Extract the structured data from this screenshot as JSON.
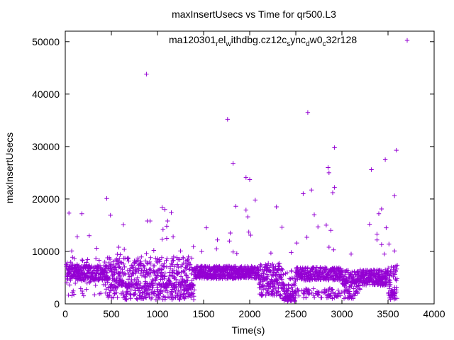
{
  "chart_data": {
    "type": "scatter",
    "title": "maxInsertUsecs vs Time for qr500.L3",
    "xlabel": "Time(s)",
    "ylabel": "maxInsertUsecs",
    "xlim": [
      0,
      4000
    ],
    "ylim": [
      0,
      52000
    ],
    "x_ticks": [
      0,
      500,
      1000,
      1500,
      2000,
      2500,
      3000,
      3500,
      4000
    ],
    "y_ticks": [
      0,
      10000,
      20000,
      30000,
      40000,
      50000
    ],
    "x_tick_labels": [
      "0",
      "500",
      "1000",
      "1500",
      "2000",
      "2500",
      "3000",
      "3500",
      "4000"
    ],
    "y_tick_labels": [
      "0",
      "10000",
      "20000",
      "30000",
      "40000",
      "50000"
    ],
    "legend_position": "top-right",
    "marker": "+",
    "series": [
      {
        "name": "ma120301relwithdbg.cz12csyncdw0c32r128",
        "name_parts": {
          "p1": "ma120301",
          "s1": "r",
          "p2": "el",
          "s2": "w",
          "p3": "ithdbg.cz12c",
          "s3": "s",
          "p4": "ync",
          "s4": "d",
          "p5": "w0",
          "s5": "c",
          "p6": "32r128"
        },
        "color": "#9400d3",
        "outliers": [
          [
            880,
            43800
          ],
          [
            2630,
            36500
          ],
          [
            1760,
            35200
          ],
          [
            2920,
            29800
          ],
          [
            3590,
            29300
          ],
          [
            3470,
            27500
          ],
          [
            1820,
            26800
          ],
          [
            2850,
            26000
          ],
          [
            3320,
            25600
          ],
          [
            2860,
            25000
          ],
          [
            1960,
            24100
          ],
          [
            2000,
            23700
          ],
          [
            2920,
            22200
          ],
          [
            2670,
            21700
          ],
          [
            2900,
            21200
          ],
          [
            2580,
            21000
          ],
          [
            3570,
            20600
          ],
          [
            450,
            20100
          ],
          [
            2060,
            19800
          ],
          [
            1850,
            18600
          ],
          [
            2290,
            18500
          ],
          [
            1050,
            18400
          ],
          [
            3430,
            18100
          ],
          [
            1080,
            18000
          ],
          [
            1960,
            17900
          ],
          [
            40,
            17300
          ],
          [
            180,
            17200
          ],
          [
            1150,
            17400
          ],
          [
            3400,
            17200
          ],
          [
            2700,
            17000
          ],
          [
            490,
            16900
          ],
          [
            1980,
            16600
          ],
          [
            890,
            15800
          ],
          [
            920,
            15800
          ],
          [
            1110,
            15800
          ],
          [
            3300,
            15200
          ],
          [
            630,
            15100
          ],
          [
            2830,
            15000
          ],
          [
            1100,
            14800
          ],
          [
            2740,
            14700
          ],
          [
            2350,
            14600
          ],
          [
            3480,
            14500
          ],
          [
            1530,
            14500
          ],
          [
            1060,
            14200
          ],
          [
            2880,
            14000
          ],
          [
            1990,
            13700
          ],
          [
            1790,
            13500
          ],
          [
            3380,
            13300
          ],
          [
            2010,
            13100
          ],
          [
            260,
            13000
          ],
          [
            130,
            12800
          ],
          [
            1170,
            12800
          ],
          [
            2620,
            12700
          ],
          [
            1100,
            12500
          ],
          [
            1050,
            12300
          ],
          [
            3380,
            12200
          ],
          [
            1650,
            12200
          ],
          [
            1780,
            12000
          ],
          [
            2510,
            11600
          ],
          [
            3510,
            11400
          ],
          [
            3430,
            11300
          ],
          [
            1390,
            10900
          ],
          [
            580,
            10800
          ],
          [
            2860,
            10800
          ],
          [
            340,
            10600
          ],
          [
            1640,
            10500
          ],
          [
            640,
            10400
          ],
          [
            2910,
            10300
          ],
          [
            960,
            10200
          ],
          [
            3570,
            10100
          ],
          [
            70,
            10100
          ],
          [
            1250,
            10100
          ],
          [
            1480,
            10000
          ],
          [
            1820,
            9900
          ],
          [
            2450,
            9800
          ],
          [
            2230,
            9700
          ],
          [
            880,
            9600
          ],
          [
            1860,
            9600
          ],
          [
            3100,
            9500
          ],
          [
            3460,
            9500
          ]
        ]
      }
    ]
  }
}
